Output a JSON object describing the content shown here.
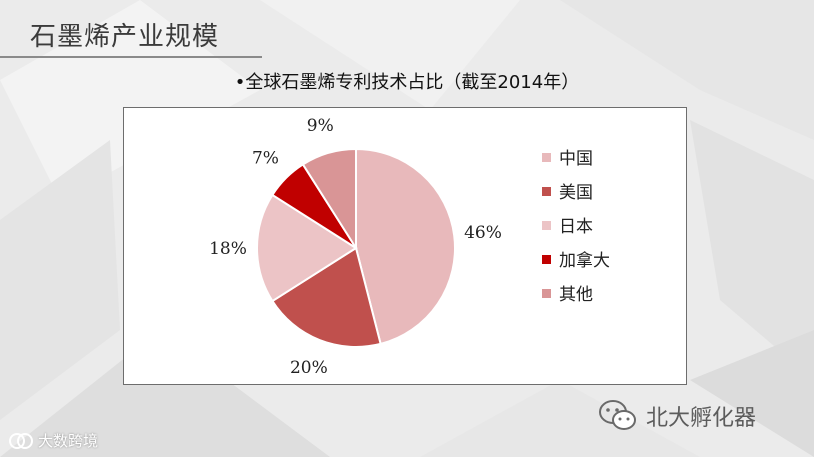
{
  "slide": {
    "title": "石墨烯产业规模",
    "subtitle": "•全球石墨烯专利技术占比（截至2014年）"
  },
  "chart_data": {
    "type": "pie",
    "title": "•全球石墨烯专利技术占比（截至2014年）",
    "slices": [
      {
        "name": "中国",
        "value": 46,
        "label": "46%",
        "color": "#e8b9bb"
      },
      {
        "name": "美国",
        "value": 20,
        "label": "20%",
        "color": "#c0504d"
      },
      {
        "name": "日本",
        "value": 18,
        "label": "18%",
        "color": "#ecc4c6"
      },
      {
        "name": "加拿大",
        "value": 7,
        "label": "7%",
        "color": "#c00000"
      },
      {
        "name": "其他",
        "value": 9,
        "label": "9%",
        "color": "#d99596"
      }
    ],
    "legend_position": "right"
  },
  "watermark": {
    "text": "北大孵化器",
    "icon": "wechat-icon"
  },
  "corner_mark": {
    "text": "大数跨境",
    "icon": "brand-logo-icon"
  }
}
